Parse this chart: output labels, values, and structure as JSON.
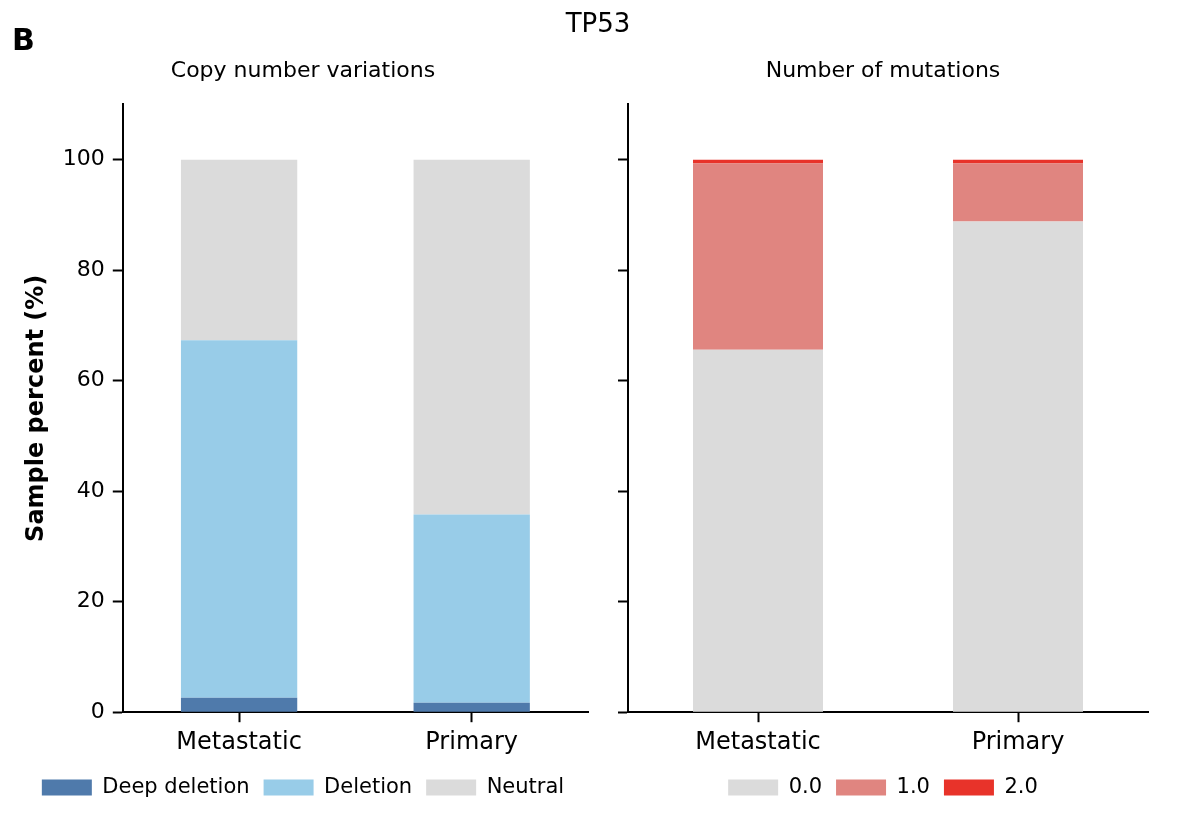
{
  "chart_data": [
    {
      "type": "bar",
      "title": "Copy number variations",
      "ylabel": "Sample percent (%)",
      "annotations": [
        "TP53",
        "B"
      ],
      "categories": [
        "Metastatic",
        "Primary"
      ],
      "stacked": true,
      "ylim": [
        0,
        110
      ],
      "yticks": [
        0,
        20,
        40,
        60,
        80,
        100
      ],
      "grid": false,
      "legend": "bottom",
      "series": [
        {
          "name": "Deep deletion",
          "color": "#4f7aab",
          "values": [
            2.6,
            1.7
          ]
        },
        {
          "name": "Deletion",
          "color": "#98cce8",
          "values": [
            64.7,
            34.1
          ]
        },
        {
          "name": "Neutral",
          "color": "#dbdbdb",
          "values": [
            32.7,
            64.2
          ]
        }
      ]
    },
    {
      "type": "bar",
      "title": "Number of mutations",
      "categories": [
        "Metastatic",
        "Primary"
      ],
      "stacked": true,
      "ylim": [
        0,
        110
      ],
      "yticks": [
        0,
        20,
        40,
        60,
        80,
        100
      ],
      "grid": false,
      "legend": "bottom",
      "tick_labels": "x",
      "series": [
        {
          "name": "0.0",
          "color": "#dbdbdb",
          "values": [
            65.6,
            88.8
          ]
        },
        {
          "name": "1.0",
          "color": "#e08580",
          "values": [
            33.7,
            10.5
          ]
        },
        {
          "name": "2.0",
          "color": "#e8332a",
          "values": [
            0.7,
            0.7
          ]
        }
      ]
    }
  ]
}
